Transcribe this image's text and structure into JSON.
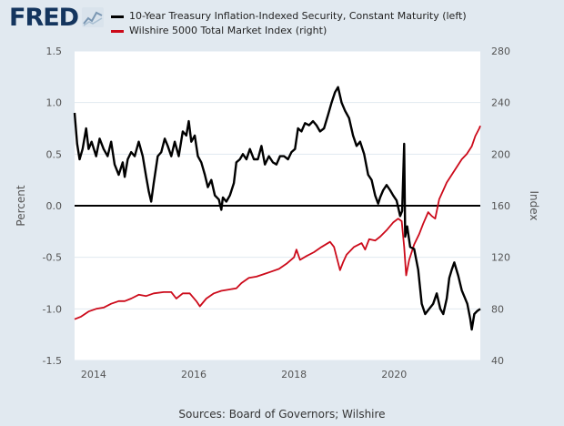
{
  "branding": {
    "logo_text": "FRED"
  },
  "source_text": "Sources: Board of Governors; Wilshire",
  "chart_data": {
    "type": "line",
    "x_ticks": [
      "2014",
      "2016",
      "2018",
      "2020"
    ],
    "x_range": [
      2013.62,
      2021.72
    ],
    "left_axis": {
      "label": "Percent",
      "range": [
        -1.5,
        1.5
      ],
      "ticks": [
        "1.5",
        "1.0",
        "0.5",
        "0.0",
        "-0.5",
        "-1.0",
        "-1.5"
      ]
    },
    "right_axis": {
      "label": "Index",
      "range": [
        40,
        280
      ],
      "ticks": [
        "280",
        "240",
        "200",
        "160",
        "120",
        "80",
        "40"
      ]
    },
    "zero_line": 0.0,
    "series": [
      {
        "name": "10-Year Treasury Inflation-Indexed Security, Constant Maturity (left)",
        "axis": "left",
        "color": "#000000",
        "points": [
          [
            2013.62,
            0.9
          ],
          [
            2013.67,
            0.6
          ],
          [
            2013.72,
            0.45
          ],
          [
            2013.78,
            0.55
          ],
          [
            2013.85,
            0.75
          ],
          [
            2013.9,
            0.55
          ],
          [
            2013.96,
            0.62
          ],
          [
            2014.05,
            0.48
          ],
          [
            2014.12,
            0.65
          ],
          [
            2014.2,
            0.55
          ],
          [
            2014.28,
            0.48
          ],
          [
            2014.35,
            0.62
          ],
          [
            2014.42,
            0.4
          ],
          [
            2014.5,
            0.3
          ],
          [
            2014.58,
            0.42
          ],
          [
            2014.62,
            0.28
          ],
          [
            2014.68,
            0.45
          ],
          [
            2014.75,
            0.52
          ],
          [
            2014.82,
            0.48
          ],
          [
            2014.9,
            0.62
          ],
          [
            2014.98,
            0.48
          ],
          [
            2015.05,
            0.28
          ],
          [
            2015.1,
            0.14
          ],
          [
            2015.15,
            0.04
          ],
          [
            2015.2,
            0.22
          ],
          [
            2015.28,
            0.48
          ],
          [
            2015.35,
            0.52
          ],
          [
            2015.42,
            0.65
          ],
          [
            2015.48,
            0.58
          ],
          [
            2015.55,
            0.48
          ],
          [
            2015.62,
            0.62
          ],
          [
            2015.7,
            0.48
          ],
          [
            2015.78,
            0.72
          ],
          [
            2015.85,
            0.68
          ],
          [
            2015.9,
            0.82
          ],
          [
            2015.95,
            0.62
          ],
          [
            2016.02,
            0.68
          ],
          [
            2016.08,
            0.48
          ],
          [
            2016.15,
            0.42
          ],
          [
            2016.22,
            0.3
          ],
          [
            2016.28,
            0.18
          ],
          [
            2016.35,
            0.25
          ],
          [
            2016.42,
            0.1
          ],
          [
            2016.5,
            0.06
          ],
          [
            2016.55,
            -0.04
          ],
          [
            2016.58,
            0.08
          ],
          [
            2016.65,
            0.04
          ],
          [
            2016.72,
            0.1
          ],
          [
            2016.8,
            0.22
          ],
          [
            2016.85,
            0.42
          ],
          [
            2016.92,
            0.45
          ],
          [
            2016.98,
            0.5
          ],
          [
            2017.05,
            0.45
          ],
          [
            2017.12,
            0.55
          ],
          [
            2017.2,
            0.45
          ],
          [
            2017.28,
            0.45
          ],
          [
            2017.35,
            0.58
          ],
          [
            2017.42,
            0.4
          ],
          [
            2017.5,
            0.48
          ],
          [
            2017.58,
            0.42
          ],
          [
            2017.65,
            0.4
          ],
          [
            2017.72,
            0.48
          ],
          [
            2017.8,
            0.48
          ],
          [
            2017.88,
            0.45
          ],
          [
            2017.95,
            0.52
          ],
          [
            2018.02,
            0.55
          ],
          [
            2018.08,
            0.75
          ],
          [
            2018.15,
            0.72
          ],
          [
            2018.22,
            0.8
          ],
          [
            2018.3,
            0.78
          ],
          [
            2018.38,
            0.82
          ],
          [
            2018.45,
            0.78
          ],
          [
            2018.52,
            0.72
          ],
          [
            2018.6,
            0.75
          ],
          [
            2018.68,
            0.88
          ],
          [
            2018.75,
            1.0
          ],
          [
            2018.82,
            1.1
          ],
          [
            2018.88,
            1.15
          ],
          [
            2018.95,
            1.0
          ],
          [
            2019.02,
            0.92
          ],
          [
            2019.1,
            0.85
          ],
          [
            2019.18,
            0.68
          ],
          [
            2019.25,
            0.58
          ],
          [
            2019.32,
            0.62
          ],
          [
            2019.4,
            0.5
          ],
          [
            2019.48,
            0.3
          ],
          [
            2019.55,
            0.25
          ],
          [
            2019.62,
            0.1
          ],
          [
            2019.68,
            0.02
          ],
          [
            2019.72,
            0.08
          ],
          [
            2019.78,
            0.15
          ],
          [
            2019.85,
            0.2
          ],
          [
            2019.92,
            0.15
          ],
          [
            2019.98,
            0.1
          ],
          [
            2020.05,
            0.05
          ],
          [
            2020.12,
            -0.1
          ],
          [
            2020.16,
            -0.05
          ],
          [
            2020.2,
            0.6
          ],
          [
            2020.22,
            -0.3
          ],
          [
            2020.26,
            -0.2
          ],
          [
            2020.32,
            -0.4
          ],
          [
            2020.4,
            -0.42
          ],
          [
            2020.48,
            -0.62
          ],
          [
            2020.55,
            -0.95
          ],
          [
            2020.62,
            -1.05
          ],
          [
            2020.7,
            -1.0
          ],
          [
            2020.78,
            -0.95
          ],
          [
            2020.85,
            -0.85
          ],
          [
            2020.92,
            -1.0
          ],
          [
            2020.98,
            -1.05
          ],
          [
            2021.05,
            -0.9
          ],
          [
            2021.1,
            -0.7
          ],
          [
            2021.15,
            -0.62
          ],
          [
            2021.2,
            -0.55
          ],
          [
            2021.28,
            -0.68
          ],
          [
            2021.35,
            -0.82
          ],
          [
            2021.4,
            -0.88
          ],
          [
            2021.46,
            -0.95
          ],
          [
            2021.52,
            -1.1
          ],
          [
            2021.55,
            -1.2
          ],
          [
            2021.6,
            -1.05
          ],
          [
            2021.66,
            -1.02
          ],
          [
            2021.72,
            -1.0
          ]
        ]
      },
      {
        "name": "Wilshire 5000 Total Market Index (right)",
        "axis": "right",
        "color": "#cc0a1a",
        "points": [
          [
            2013.62,
            72
          ],
          [
            2013.75,
            74
          ],
          [
            2013.9,
            78
          ],
          [
            2014.05,
            80
          ],
          [
            2014.2,
            81
          ],
          [
            2014.35,
            84
          ],
          [
            2014.5,
            86
          ],
          [
            2014.62,
            86
          ],
          [
            2014.75,
            88
          ],
          [
            2014.9,
            91
          ],
          [
            2015.05,
            90
          ],
          [
            2015.2,
            92
          ],
          [
            2015.4,
            93
          ],
          [
            2015.55,
            93
          ],
          [
            2015.65,
            88
          ],
          [
            2015.78,
            92
          ],
          [
            2015.92,
            92
          ],
          [
            2016.05,
            86
          ],
          [
            2016.12,
            82
          ],
          [
            2016.25,
            88
          ],
          [
            2016.4,
            92
          ],
          [
            2016.55,
            94
          ],
          [
            2016.7,
            95
          ],
          [
            2016.85,
            96
          ],
          [
            2016.95,
            100
          ],
          [
            2017.1,
            104
          ],
          [
            2017.25,
            105
          ],
          [
            2017.4,
            107
          ],
          [
            2017.55,
            109
          ],
          [
            2017.7,
            111
          ],
          [
            2017.85,
            115
          ],
          [
            2018.0,
            120
          ],
          [
            2018.05,
            126
          ],
          [
            2018.12,
            118
          ],
          [
            2018.25,
            121
          ],
          [
            2018.4,
            124
          ],
          [
            2018.55,
            128
          ],
          [
            2018.72,
            132
          ],
          [
            2018.8,
            128
          ],
          [
            2018.92,
            110
          ],
          [
            2018.98,
            116
          ],
          [
            2019.05,
            122
          ],
          [
            2019.2,
            128
          ],
          [
            2019.35,
            131
          ],
          [
            2019.42,
            126
          ],
          [
            2019.5,
            134
          ],
          [
            2019.62,
            133
          ],
          [
            2019.72,
            136
          ],
          [
            2019.85,
            141
          ],
          [
            2019.98,
            147
          ],
          [
            2020.08,
            150
          ],
          [
            2020.15,
            148
          ],
          [
            2020.2,
            128
          ],
          [
            2020.24,
            106
          ],
          [
            2020.3,
            118
          ],
          [
            2020.4,
            130
          ],
          [
            2020.5,
            138
          ],
          [
            2020.58,
            146
          ],
          [
            2020.68,
            155
          ],
          [
            2020.75,
            152
          ],
          [
            2020.82,
            150
          ],
          [
            2020.9,
            165
          ],
          [
            2020.98,
            172
          ],
          [
            2021.05,
            178
          ],
          [
            2021.15,
            184
          ],
          [
            2021.25,
            190
          ],
          [
            2021.35,
            196
          ],
          [
            2021.45,
            200
          ],
          [
            2021.55,
            206
          ],
          [
            2021.62,
            214
          ],
          [
            2021.7,
            220
          ],
          [
            2021.72,
            222
          ]
        ]
      }
    ],
    "legend": "top-left",
    "grid": "horizontal"
  }
}
